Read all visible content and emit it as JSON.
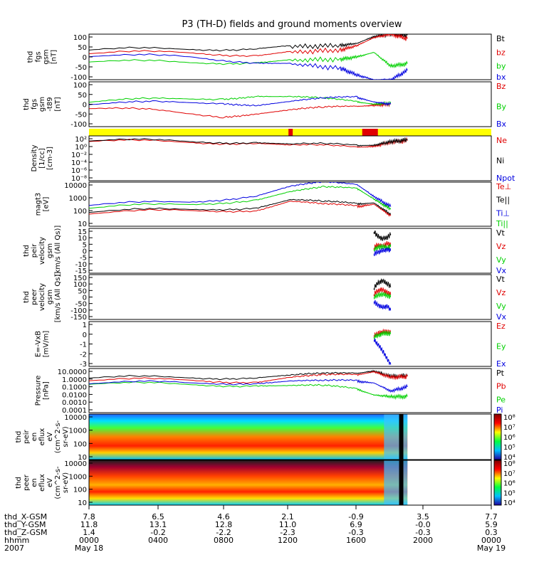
{
  "title": "P3 (TH-D) fields and ground moments overview",
  "colors": {
    "black": "#000000",
    "red": "#e00000",
    "green": "#00d000",
    "blue": "#0000e0",
    "yellow": "#ffff00"
  },
  "chart_data": [
    {
      "id": "fgs",
      "type": "line",
      "ylabel": [
        "thd",
        "fgs",
        "gsm",
        "[nT]"
      ],
      "yticks": [
        "100",
        "50",
        "0",
        "-50",
        "-100"
      ],
      "ylim": [
        -100,
        100
      ],
      "legend": [
        {
          "text": "Bt",
          "color": "black"
        },
        {
          "text": "bz",
          "color": "red"
        },
        {
          "text": "by",
          "color": "green"
        },
        {
          "text": "bx",
          "color": "blue"
        }
      ],
      "series": [
        {
          "name": "Bt",
          "color": "black",
          "x": [
            0,
            6,
            10,
            12,
            15,
            16,
            17,
            18,
            19
          ],
          "y": [
            30,
            35,
            40,
            45,
            50,
            60,
            90,
            100,
            95
          ]
        },
        {
          "name": "bz",
          "color": "red",
          "x": [
            0,
            6,
            10,
            12,
            15,
            16,
            17,
            18,
            19
          ],
          "y": [
            15,
            20,
            10,
            20,
            30,
            50,
            85,
            100,
            80
          ]
        },
        {
          "name": "by",
          "color": "green",
          "x": [
            0,
            6,
            10,
            12,
            15,
            16,
            17,
            18,
            19
          ],
          "y": [
            -20,
            -25,
            -20,
            -15,
            -10,
            0,
            20,
            -40,
            -30
          ]
        },
        {
          "name": "bx",
          "color": "blue",
          "x": [
            0,
            6,
            10,
            12,
            15,
            16,
            17,
            18,
            19
          ],
          "y": [
            5,
            0,
            -20,
            -30,
            -50,
            -80,
            -100,
            -100,
            -60
          ]
        }
      ]
    },
    {
      "id": "fgs_t89",
      "type": "line",
      "ylabel": [
        "thd",
        "fgs",
        "gsm",
        "-t89",
        "[nT]"
      ],
      "yticks": [
        "100",
        "50",
        "0",
        "-50",
        "-100"
      ],
      "ylim": [
        -100,
        100
      ],
      "legend": [
        {
          "text": "Bz",
          "color": "red"
        },
        {
          "text": "By",
          "color": "green"
        },
        {
          "text": "Bx",
          "color": "blue"
        }
      ],
      "series": [
        {
          "name": "Bz",
          "color": "red",
          "x": [
            0,
            4,
            8,
            10,
            12,
            14,
            16,
            17,
            18
          ],
          "y": [
            -20,
            -30,
            -50,
            -40,
            -30,
            -20,
            -10,
            -5,
            0
          ]
        },
        {
          "name": "By",
          "color": "green",
          "x": [
            0,
            4,
            8,
            10,
            12,
            14,
            16,
            17,
            18
          ],
          "y": [
            10,
            20,
            30,
            40,
            30,
            20,
            10,
            0,
            5
          ]
        },
        {
          "name": "Bx",
          "color": "blue",
          "x": [
            0,
            4,
            8,
            10,
            12,
            14,
            16,
            17,
            18
          ],
          "y": [
            0,
            5,
            10,
            0,
            10,
            20,
            30,
            10,
            0
          ]
        }
      ]
    },
    {
      "id": "bar",
      "type": "table"
    },
    {
      "id": "density",
      "type": "line",
      "log": true,
      "ylabel": [
        "Density",
        "[1/cc]",
        "[cm-3]"
      ],
      "yticks": [
        "10²",
        "10⁰",
        "10⁻²",
        "10⁻⁴",
        "10⁻⁶",
        "10⁻⁸"
      ],
      "ylim": [
        -9,
        2
      ],
      "legend": [
        {
          "text": "Ne",
          "color": "red"
        },
        {
          "text": "Ni",
          "color": "black"
        },
        {
          "text": "Npot",
          "color": "blue"
        }
      ],
      "series": [
        {
          "name": "Ne",
          "color": "red",
          "x": [
            0,
            6,
            10,
            12,
            16,
            17,
            18,
            19
          ],
          "y": [
            0.6,
            0.5,
            0.4,
            -0.5,
            -0.8,
            -0.6,
            0.5,
            0.8
          ]
        },
        {
          "name": "Ni",
          "color": "black",
          "x": [
            0,
            6,
            10,
            12,
            16,
            17,
            18,
            19
          ],
          "y": [
            0.8,
            0.7,
            0.6,
            -0.2,
            -0.4,
            -0.3,
            0.6,
            1.0
          ]
        }
      ]
    },
    {
      "id": "magt3",
      "type": "line",
      "log": true,
      "ylabel": [
        "magt3",
        "[eV]"
      ],
      "yticks": [
        "10000",
        "1000",
        "100",
        "10"
      ],
      "ylim": [
        0.7,
        4.1
      ],
      "legend": [
        {
          "text": "Te⊥",
          "color": "red"
        },
        {
          "text": "Te||",
          "color": "black"
        },
        {
          "text": "Ti⊥",
          "color": "blue"
        },
        {
          "text": "Ti||",
          "color": "green"
        }
      ],
      "series": [
        {
          "name": "Ti⊥",
          "color": "blue",
          "x": [
            0,
            6,
            10,
            12,
            14,
            16,
            17,
            18
          ],
          "y": [
            2.3,
            2.6,
            3.1,
            3.7,
            4.0,
            3.9,
            3.0,
            2.2
          ]
        },
        {
          "name": "Ti||",
          "color": "green",
          "x": [
            0,
            6,
            10,
            12,
            14,
            16,
            17,
            18
          ],
          "y": [
            2.1,
            2.4,
            2.8,
            3.3,
            3.6,
            3.6,
            2.8,
            2.0
          ]
        },
        {
          "name": "Te||",
          "color": "black",
          "x": [
            0,
            6,
            10,
            12,
            14,
            16,
            17,
            18
          ],
          "y": [
            1.8,
            2.0,
            2.2,
            2.7,
            2.5,
            2.4,
            2.5,
            1.6
          ]
        },
        {
          "name": "Te⊥",
          "color": "red",
          "x": [
            0,
            6,
            10,
            12,
            14,
            16,
            17,
            18
          ],
          "y": [
            1.7,
            1.9,
            2.0,
            2.6,
            2.3,
            2.2,
            2.4,
            1.5
          ]
        }
      ]
    },
    {
      "id": "peir_v",
      "type": "line",
      "ylabel": [
        "thd",
        "peir",
        "velocity",
        "gsm",
        "[km/s (All Qs)]"
      ],
      "yticks": [
        "15",
        "10",
        "5",
        "0",
        "-5",
        "-10",
        "-15"
      ],
      "ylim": [
        -15,
        15
      ],
      "legend": [
        {
          "text": "Vt",
          "color": "black"
        },
        {
          "text": "Vz",
          "color": "red"
        },
        {
          "text": "Vy",
          "color": "green"
        },
        {
          "text": "Vx",
          "color": "blue"
        }
      ],
      "series": [
        {
          "name": "Vt",
          "color": "black",
          "x": [
            17.0,
            17.2,
            17.5,
            17.8,
            18.0
          ],
          "y": [
            13,
            10,
            8,
            9,
            11
          ]
        },
        {
          "name": "Vz",
          "color": "red",
          "x": [
            17.0,
            17.2,
            17.5,
            17.8,
            18.0
          ],
          "y": [
            2,
            4,
            3,
            5,
            4
          ]
        },
        {
          "name": "Vy",
          "color": "green",
          "x": [
            17.0,
            17.2,
            17.5,
            17.8,
            18.0
          ],
          "y": [
            1,
            2,
            3,
            2,
            3
          ]
        },
        {
          "name": "Vx",
          "color": "blue",
          "x": [
            17.0,
            17.2,
            17.5,
            17.8,
            18.0
          ],
          "y": [
            -2,
            -1,
            0,
            1,
            0
          ]
        }
      ]
    },
    {
      "id": "peer_v",
      "type": "line",
      "ylabel": [
        "thd",
        "peer",
        "velocity",
        "gsm",
        "[km/s (All Qs)]"
      ],
      "yticks": [
        "150",
        "100",
        "50",
        "0",
        "-50",
        "-100",
        "-150"
      ],
      "ylim": [
        -150,
        150
      ],
      "legend": [
        {
          "text": "Vt",
          "color": "black"
        },
        {
          "text": "Vz",
          "color": "red"
        },
        {
          "text": "Vy",
          "color": "green"
        },
        {
          "text": "Vx",
          "color": "blue"
        }
      ],
      "series": [
        {
          "name": "Vt",
          "color": "black",
          "x": [
            17.0,
            17.2,
            17.5,
            17.8,
            18.0
          ],
          "y": [
            60,
            90,
            110,
            90,
            70
          ]
        },
        {
          "name": "Vz",
          "color": "red",
          "x": [
            17.0,
            17.2,
            17.5,
            17.8,
            18.0
          ],
          "y": [
            20,
            40,
            50,
            30,
            20
          ]
        },
        {
          "name": "Vy",
          "color": "green",
          "x": [
            17.0,
            17.2,
            17.5,
            17.8,
            18.0
          ],
          "y": [
            0,
            10,
            20,
            10,
            0
          ]
        },
        {
          "name": "Vx",
          "color": "blue",
          "x": [
            17.0,
            17.2,
            17.5,
            17.8,
            18.0
          ],
          "y": [
            -30,
            -50,
            -70,
            -60,
            -90
          ]
        }
      ]
    },
    {
      "id": "efield",
      "type": "line",
      "ylabel": [
        "E=-VxB",
        "[mV/m]"
      ],
      "yticks": [
        "1",
        "0",
        "-1",
        "-2",
        "-3"
      ],
      "ylim": [
        -3.5,
        1.5
      ],
      "legend": [
        {
          "text": "Ez",
          "color": "red"
        },
        {
          "text": "Ey",
          "color": "green"
        },
        {
          "text": "Ex",
          "color": "blue"
        }
      ],
      "series": [
        {
          "name": "Ez",
          "color": "red",
          "x": [
            17.0,
            17.3,
            17.6,
            18.0
          ],
          "y": [
            0,
            0.2,
            0.4,
            0.3
          ]
        },
        {
          "name": "Ey",
          "color": "green",
          "x": [
            17.0,
            17.3,
            17.6,
            18.0
          ],
          "y": [
            -0.2,
            0,
            0.2,
            0.1
          ]
        },
        {
          "name": "Ex",
          "color": "blue",
          "x": [
            17.0,
            17.3,
            17.6,
            18.0
          ],
          "y": [
            -0.5,
            -1.2,
            -2.0,
            -3.3
          ]
        }
      ]
    },
    {
      "id": "pressure",
      "type": "line",
      "log": true,
      "ylabel": [
        "Pressure",
        "[nPa]"
      ],
      "yticks": [
        "10.0000",
        "1.0000",
        "0.1000",
        "0.0100",
        "0.0010",
        "0.0001"
      ],
      "ylim": [
        -4.2,
        1.3
      ],
      "legend": [
        {
          "text": "Pt",
          "color": "black"
        },
        {
          "text": "Pb",
          "color": "red"
        },
        {
          "text": "Pe",
          "color": "green"
        },
        {
          "text": "Pi",
          "color": "blue"
        }
      ],
      "series": [
        {
          "name": "Pt",
          "color": "black",
          "x": [
            0,
            6,
            10,
            12,
            14,
            16,
            17,
            18,
            19
          ],
          "y": [
            0.1,
            0.2,
            0.25,
            0.35,
            0.5,
            0.7,
            1.0,
            0.3,
            0.4
          ]
        },
        {
          "name": "Pb",
          "color": "red",
          "x": [
            0,
            6,
            10,
            12,
            14,
            16,
            17,
            18,
            19
          ],
          "y": [
            -0.2,
            -0.1,
            -0.3,
            0.1,
            0.3,
            0.5,
            0.9,
            0.2,
            0.3
          ]
        },
        {
          "name": "Pe",
          "color": "green",
          "x": [
            0,
            6,
            10,
            12,
            14,
            16,
            17,
            18,
            19
          ],
          "y": [
            -0.6,
            -0.7,
            -0.7,
            -0.9,
            -1.0,
            -1.3,
            -2.0,
            -2.2,
            -2.2
          ]
        },
        {
          "name": "Pi",
          "color": "blue",
          "x": [
            0,
            6,
            10,
            12,
            14,
            16,
            17,
            18,
            19
          ],
          "y": [
            -0.5,
            -0.5,
            -0.4,
            -0.3,
            -0.4,
            -0.3,
            -0.5,
            -1.5,
            -1.0
          ]
        }
      ]
    },
    {
      "id": "peir_en",
      "type": "heatmap",
      "ylabel": [
        "thd",
        "peir",
        "en",
        "eflux",
        "eV",
        "(cm^2-s-",
        "sr-eV)"
      ],
      "yticks": [
        "10000",
        "1000",
        "100",
        "10"
      ],
      "cbticks": [
        "10⁸",
        "10⁷",
        "10⁶",
        "10⁵",
        "10⁴"
      ]
    },
    {
      "id": "peer_en",
      "type": "heatmap",
      "ylabel": [
        "thd",
        "peer",
        "en",
        "eflux",
        "eV",
        "(cm^2-s-",
        "sr-eV)"
      ],
      "yticks": [
        "10000",
        "1000",
        "100",
        "10"
      ],
      "cbticks": [
        "10⁸",
        "10⁷",
        "10⁶",
        "10⁵",
        "10⁴"
      ]
    }
  ],
  "xaxis": {
    "row_labels": [
      "thd_X-GSM",
      "thd_Y-GSM",
      "thd_Z-GSM",
      "hhmm",
      "2007"
    ],
    "columns": [
      [
        "7.8",
        "11.8",
        "1.4",
        "0000",
        "May 18"
      ],
      [
        "6.5",
        "13.1",
        "-0.2",
        "0400",
        ""
      ],
      [
        "4.6",
        "12.8",
        "-2.2",
        "0800",
        ""
      ],
      [
        "2.1",
        "11.0",
        "-2.3",
        "1200",
        ""
      ],
      [
        "-0.9",
        "6.9",
        "-0.3",
        "1600",
        ""
      ],
      [
        "3.5",
        "-0.0",
        "-0.3",
        "2000",
        ""
      ],
      [
        "7.7",
        "5.9",
        "0.3",
        "0000",
        "May 19"
      ]
    ]
  }
}
